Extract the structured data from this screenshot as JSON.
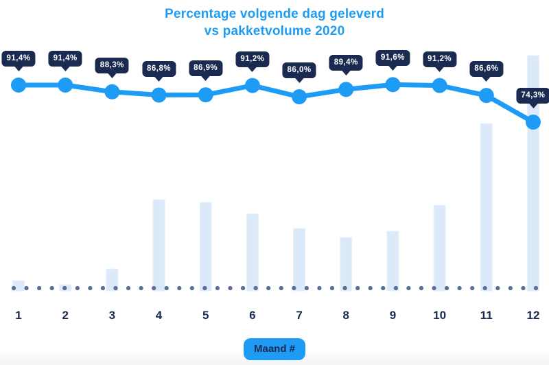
{
  "chart": {
    "title_line1": "Percentage volgende dag geleverd",
    "title_line2": "vs pakketvolume 2020",
    "xlabel": "Maand #"
  },
  "chart_data": {
    "type": "combo",
    "categories": [
      "1",
      "2",
      "3",
      "4",
      "5",
      "6",
      "7",
      "8",
      "9",
      "10",
      "11",
      "12"
    ],
    "series": [
      {
        "name": "Percentage volgende dag geleverd",
        "type": "line",
        "unit": "%",
        "values": [
          91.4,
          91.4,
          88.3,
          86.8,
          86.9,
          91.2,
          86.0,
          89.4,
          91.6,
          91.2,
          86.6,
          74.3
        ],
        "value_labels": [
          "91,4%",
          "91,4%",
          "88,3%",
          "86,8%",
          "86,9%",
          "91,2%",
          "86,0%",
          "89,4%",
          "91,6%",
          "91,2%",
          "86,6%",
          "74,3%"
        ],
        "ylim": [
          70,
          95
        ]
      },
      {
        "name": "Pakketvolume 2020",
        "type": "bar",
        "unit": "relative index (% of December peak, estimated from bar heights)",
        "values": [
          4.4,
          2.6,
          9.3,
          38.8,
          37.6,
          32.7,
          26.5,
          22.7,
          25.4,
          36.4,
          71.1,
          100
        ],
        "ylim": [
          0,
          100
        ]
      }
    ],
    "title": "Percentage volgende dag geleverd vs pakketvolume 2020",
    "xlabel": "Maand #",
    "ylabel": "",
    "legend": "none",
    "grid": "dotted horizontal baseline"
  },
  "colors": {
    "accent_blue": "#1e9cf5",
    "badge_navy": "#1b2a50",
    "badge_text": "#ffffff",
    "bar_fill": "#dbe9f9",
    "bar_edge": "#e9f2fc",
    "baseline_dot": "#5b6e96"
  }
}
